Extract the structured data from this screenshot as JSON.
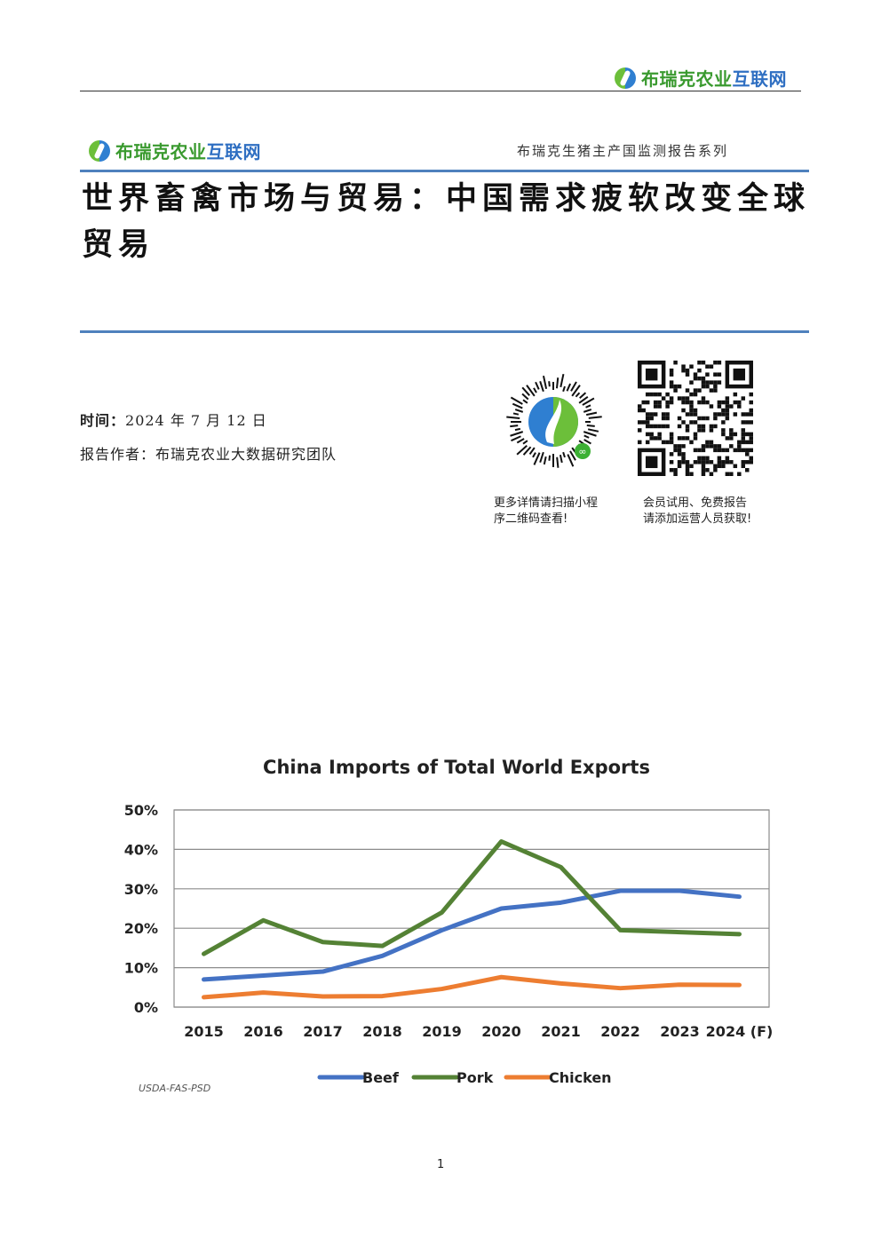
{
  "header": {
    "brand": "布瑞克农业互联网",
    "brand_green": "布瑞克农业",
    "brand_blue": "互联网"
  },
  "cover": {
    "series": "布瑞克生猪主产国监测报告系列",
    "title_line1": "世界畜禽市场与贸易：中国需求疲软改变全球",
    "title_line2": "贸易",
    "date_label": "时间：",
    "date_value": "2024 年 7 月 12 日",
    "author_label": "报告作者：",
    "author_value": "布瑞克农业大数据研究团队"
  },
  "qr_codes": [
    {
      "caption_line1": "更多详情请扫描小程",
      "caption_line2": "序二维码查看!"
    },
    {
      "caption_line1": "会员试用、免费报告",
      "caption_line2": "请添加运营人员获取!"
    }
  ],
  "chart_data": {
    "type": "line",
    "title": "China Imports of Total World Exports",
    "categories": [
      "2015",
      "2016",
      "2017",
      "2018",
      "2019",
      "2020",
      "2021",
      "2022",
      "2023",
      "2024 (F)"
    ],
    "ylim": [
      0,
      50
    ],
    "yticks": [
      "0%",
      "10%",
      "20%",
      "30%",
      "40%",
      "50%"
    ],
    "grid": true,
    "legend": "bottom",
    "series": [
      {
        "name": "Beef",
        "color": "#4472c4",
        "values": [
          7,
          8,
          9,
          13,
          19.5,
          25,
          26.5,
          29.5,
          29.5,
          28
        ]
      },
      {
        "name": "Pork",
        "color": "#548235",
        "values": [
          13.5,
          22,
          16.5,
          15.5,
          24,
          42,
          35.5,
          19.5,
          19,
          18.5
        ]
      },
      {
        "name": "Chicken",
        "color": "#ed7d31",
        "values": [
          2.5,
          3.7,
          2.7,
          2.8,
          4.6,
          7.6,
          6,
          4.8,
          5.7,
          5.6
        ]
      }
    ],
    "source": "USDA-FAS-PSD"
  },
  "footer": {
    "page_number": "1"
  }
}
